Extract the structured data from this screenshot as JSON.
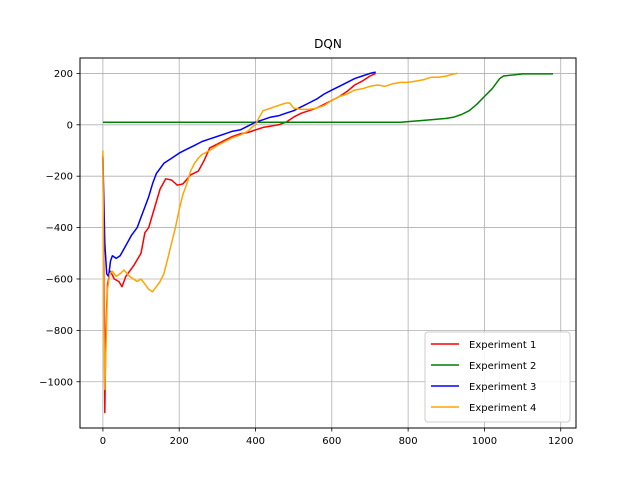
{
  "chart_data": {
    "type": "line",
    "title": "DQN",
    "xlabel": "",
    "ylabel": "",
    "xlim": [
      -60,
      1240
    ],
    "ylim": [
      -1180,
      260
    ],
    "xticks": [
      0,
      200,
      400,
      600,
      800,
      1000,
      1200
    ],
    "yticks": [
      -1000,
      -800,
      -600,
      -400,
      -200,
      0,
      200
    ],
    "xtick_labels": [
      "0",
      "200",
      "400",
      "600",
      "800",
      "1000",
      "1200"
    ],
    "ytick_labels": [
      "−1000",
      "−800",
      "−600",
      "−400",
      "−200",
      "0",
      "200"
    ],
    "grid": true,
    "legend_position": "lower-right",
    "series": [
      {
        "name": "Experiment 1",
        "color": "#ff0000",
        "points": [
          [
            0,
            -120
          ],
          [
            3,
            -600
          ],
          [
            5,
            -1120
          ],
          [
            8,
            -800
          ],
          [
            12,
            -620
          ],
          [
            20,
            -570
          ],
          [
            30,
            -600
          ],
          [
            42,
            -610
          ],
          [
            50,
            -630
          ],
          [
            60,
            -590
          ],
          [
            80,
            -550
          ],
          [
            100,
            -500
          ],
          [
            110,
            -420
          ],
          [
            120,
            -400
          ],
          [
            140,
            -300
          ],
          [
            150,
            -250
          ],
          [
            165,
            -210
          ],
          [
            180,
            -215
          ],
          [
            195,
            -235
          ],
          [
            210,
            -230
          ],
          [
            230,
            -195
          ],
          [
            250,
            -180
          ],
          [
            265,
            -140
          ],
          [
            280,
            -90
          ],
          [
            300,
            -75
          ],
          [
            320,
            -60
          ],
          [
            340,
            -45
          ],
          [
            360,
            -35
          ],
          [
            380,
            -30
          ],
          [
            400,
            -20
          ],
          [
            420,
            -10
          ],
          [
            440,
            -5
          ],
          [
            460,
            0
          ],
          [
            480,
            10
          ],
          [
            500,
            30
          ],
          [
            520,
            45
          ],
          [
            540,
            55
          ],
          [
            560,
            65
          ],
          [
            580,
            80
          ],
          [
            600,
            95
          ],
          [
            620,
            110
          ],
          [
            640,
            130
          ],
          [
            660,
            155
          ],
          [
            680,
            170
          ],
          [
            700,
            190
          ],
          [
            715,
            200
          ]
        ]
      },
      {
        "name": "Experiment 2",
        "color": "#008000",
        "points": [
          [
            0,
            10
          ],
          [
            100,
            10
          ],
          [
            300,
            10
          ],
          [
            500,
            10
          ],
          [
            700,
            10
          ],
          [
            780,
            10
          ],
          [
            820,
            15
          ],
          [
            860,
            20
          ],
          [
            900,
            25
          ],
          [
            920,
            30
          ],
          [
            940,
            40
          ],
          [
            960,
            55
          ],
          [
            980,
            80
          ],
          [
            1000,
            110
          ],
          [
            1020,
            140
          ],
          [
            1040,
            180
          ],
          [
            1050,
            190
          ],
          [
            1080,
            195
          ],
          [
            1100,
            198
          ],
          [
            1130,
            198
          ],
          [
            1160,
            198
          ],
          [
            1180,
            198
          ]
        ]
      },
      {
        "name": "Experiment 3",
        "color": "#0000ff",
        "points": [
          [
            0,
            -130
          ],
          [
            5,
            -460
          ],
          [
            10,
            -580
          ],
          [
            15,
            -590
          ],
          [
            20,
            -530
          ],
          [
            25,
            -510
          ],
          [
            35,
            -520
          ],
          [
            45,
            -510
          ],
          [
            60,
            -470
          ],
          [
            75,
            -430
          ],
          [
            90,
            -400
          ],
          [
            100,
            -360
          ],
          [
            110,
            -320
          ],
          [
            120,
            -280
          ],
          [
            130,
            -230
          ],
          [
            140,
            -190
          ],
          [
            150,
            -170
          ],
          [
            160,
            -150
          ],
          [
            180,
            -130
          ],
          [
            200,
            -110
          ],
          [
            220,
            -95
          ],
          [
            240,
            -80
          ],
          [
            260,
            -65
          ],
          [
            280,
            -55
          ],
          [
            300,
            -45
          ],
          [
            320,
            -35
          ],
          [
            340,
            -25
          ],
          [
            360,
            -20
          ],
          [
            380,
            -5
          ],
          [
            400,
            10
          ],
          [
            420,
            20
          ],
          [
            440,
            30
          ],
          [
            460,
            35
          ],
          [
            480,
            45
          ],
          [
            500,
            55
          ],
          [
            520,
            70
          ],
          [
            540,
            85
          ],
          [
            560,
            100
          ],
          [
            580,
            120
          ],
          [
            600,
            135
          ],
          [
            620,
            150
          ],
          [
            640,
            165
          ],
          [
            660,
            180
          ],
          [
            680,
            190
          ],
          [
            700,
            200
          ],
          [
            715,
            205
          ]
        ]
      },
      {
        "name": "Experiment 4",
        "color": "#ffa500",
        "points": [
          [
            0,
            -100
          ],
          [
            3,
            -800
          ],
          [
            5,
            -1030
          ],
          [
            8,
            -880
          ],
          [
            12,
            -640
          ],
          [
            18,
            -580
          ],
          [
            25,
            -570
          ],
          [
            35,
            -590
          ],
          [
            45,
            -580
          ],
          [
            55,
            -565
          ],
          [
            70,
            -590
          ],
          [
            80,
            -600
          ],
          [
            90,
            -610
          ],
          [
            100,
            -600
          ],
          [
            110,
            -620
          ],
          [
            120,
            -640
          ],
          [
            130,
            -650
          ],
          [
            140,
            -630
          ],
          [
            150,
            -610
          ],
          [
            160,
            -580
          ],
          [
            170,
            -520
          ],
          [
            180,
            -460
          ],
          [
            190,
            -400
          ],
          [
            200,
            -330
          ],
          [
            210,
            -270
          ],
          [
            220,
            -230
          ],
          [
            230,
            -180
          ],
          [
            240,
            -150
          ],
          [
            250,
            -130
          ],
          [
            260,
            -115
          ],
          [
            280,
            -100
          ],
          [
            300,
            -80
          ],
          [
            320,
            -65
          ],
          [
            340,
            -50
          ],
          [
            360,
            -40
          ],
          [
            380,
            -25
          ],
          [
            390,
            -10
          ],
          [
            400,
            0
          ],
          [
            410,
            30
          ],
          [
            420,
            55
          ],
          [
            430,
            60
          ],
          [
            440,
            65
          ],
          [
            460,
            75
          ],
          [
            480,
            85
          ],
          [
            490,
            85
          ],
          [
            500,
            65
          ],
          [
            520,
            60
          ],
          [
            540,
            60
          ],
          [
            560,
            65
          ],
          [
            580,
            75
          ],
          [
            600,
            95
          ],
          [
            620,
            110
          ],
          [
            640,
            120
          ],
          [
            660,
            135
          ],
          [
            680,
            140
          ],
          [
            700,
            150
          ],
          [
            720,
            155
          ],
          [
            740,
            150
          ],
          [
            760,
            160
          ],
          [
            780,
            165
          ],
          [
            800,
            165
          ],
          [
            820,
            170
          ],
          [
            840,
            175
          ],
          [
            860,
            185
          ],
          [
            880,
            185
          ],
          [
            900,
            190
          ],
          [
            920,
            198
          ],
          [
            930,
            200
          ]
        ]
      }
    ]
  }
}
